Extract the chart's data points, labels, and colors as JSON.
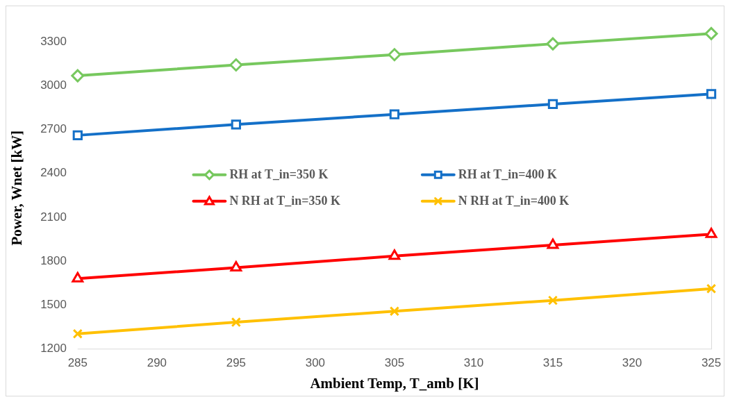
{
  "chart_data": {
    "type": "line",
    "xlabel": "Ambient Temp, T_amb [K]",
    "ylabel": "Power, Wnet [kW]",
    "x": [
      285,
      295,
      305,
      315,
      325
    ],
    "series": [
      {
        "name": "RH at T_in=350 K",
        "color": "#77c85e",
        "marker": "diamond",
        "values": [
          3067,
          3141,
          3211,
          3285,
          3355
        ]
      },
      {
        "name": "RH at T_in=400 K",
        "color": "#1470c8",
        "marker": "square",
        "values": [
          2660,
          2734,
          2803,
          2873,
          2942
        ]
      },
      {
        "name": "N RH at T_in=350 K",
        "color": "#ff0000",
        "marker": "triangle",
        "values": [
          1681,
          1756,
          1835,
          1910,
          1984
        ]
      },
      {
        "name": "N RH at T_in=400 K",
        "color": "#ffc000",
        "marker": "cross",
        "values": [
          1304,
          1383,
          1458,
          1532,
          1612
        ]
      }
    ],
    "xlim": [
      285,
      325
    ],
    "xticks": [
      285,
      290,
      295,
      300,
      305,
      310,
      315,
      320,
      325
    ],
    "ylim": [
      1200,
      3400
    ],
    "yticks": [
      1200,
      1500,
      1800,
      2100,
      2400,
      2700,
      3000,
      3300
    ],
    "grid": false,
    "legend": "center"
  }
}
